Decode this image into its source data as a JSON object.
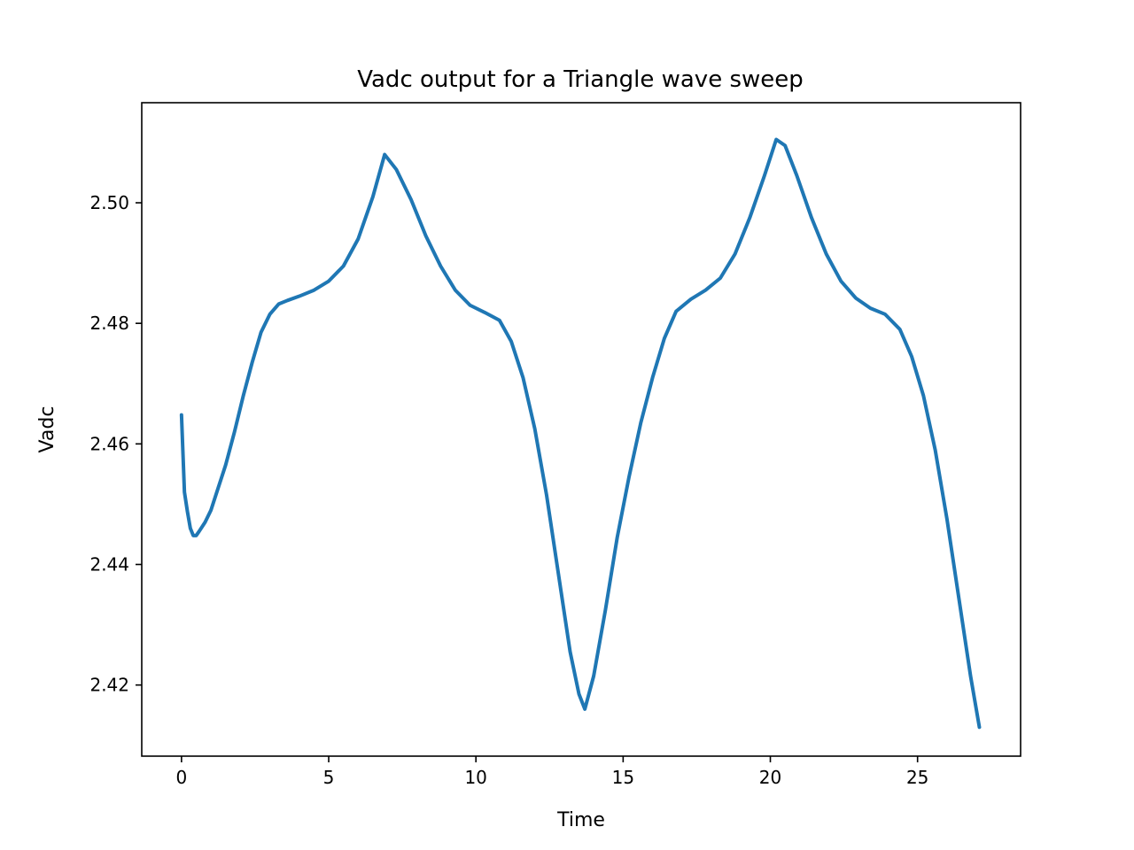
{
  "chart_data": {
    "type": "line",
    "title": "Vadc output for a Triangle wave sweep",
    "xlabel": "Time",
    "ylabel": "Vadc",
    "xlim": [
      -1.35,
      28.5
    ],
    "ylim": [
      2.4082,
      2.5166
    ],
    "xticks": [
      0,
      5,
      10,
      15,
      20,
      25
    ],
    "xtick_labels": [
      "0",
      "5",
      "10",
      "15",
      "20",
      "25"
    ],
    "yticks": [
      2.42,
      2.44,
      2.46,
      2.48,
      2.5
    ],
    "ytick_labels": [
      "2.42",
      "2.44",
      "2.46",
      "2.48",
      "2.50"
    ],
    "grid": false,
    "line_color": "#1f77b4",
    "series": [
      {
        "x": [
          0.0,
          0.1,
          0.2,
          0.3,
          0.4,
          0.5,
          0.6,
          0.8,
          1.0,
          1.2,
          1.5,
          1.8,
          2.1,
          2.4,
          2.7,
          3.0,
          3.3,
          3.6,
          4.0,
          4.5,
          5.0,
          5.5,
          6.0,
          6.5,
          6.9,
          7.3,
          7.8,
          8.3,
          8.8,
          9.3,
          9.8,
          10.3,
          10.8,
          11.2,
          11.6,
          12.0,
          12.4,
          12.8,
          13.2,
          13.5,
          13.7,
          14.0,
          14.4,
          14.8,
          15.2,
          15.6,
          16.0,
          16.4,
          16.8,
          17.3,
          17.8,
          18.3,
          18.8,
          19.3,
          19.8,
          20.2,
          20.5,
          20.9,
          21.4,
          21.9,
          22.4,
          22.9,
          23.4,
          23.9,
          24.4,
          24.8,
          25.2,
          25.6,
          26.0,
          26.4,
          26.8,
          27.1
        ],
        "y": [
          2.4648,
          2.452,
          2.4488,
          2.446,
          2.4448,
          2.4448,
          2.4455,
          2.447,
          2.449,
          2.452,
          2.4565,
          2.462,
          2.468,
          2.4735,
          2.4785,
          2.4815,
          2.4832,
          2.4838,
          2.4845,
          2.4855,
          2.487,
          2.4895,
          2.494,
          2.501,
          2.508,
          2.5055,
          2.5005,
          2.4945,
          2.4895,
          2.4855,
          2.483,
          2.4818,
          2.4805,
          2.477,
          2.471,
          2.4625,
          2.4515,
          2.4385,
          2.4255,
          2.4185,
          2.416,
          2.4215,
          2.4325,
          2.4445,
          2.4545,
          2.4635,
          2.471,
          2.4775,
          2.482,
          2.484,
          2.4855,
          2.4875,
          2.4915,
          2.4975,
          2.5045,
          2.5105,
          2.5095,
          2.5045,
          2.4975,
          2.4915,
          2.487,
          2.4842,
          2.4825,
          2.4815,
          2.479,
          2.4745,
          2.468,
          2.459,
          2.4475,
          2.4345,
          2.4215,
          2.413
        ]
      }
    ]
  }
}
